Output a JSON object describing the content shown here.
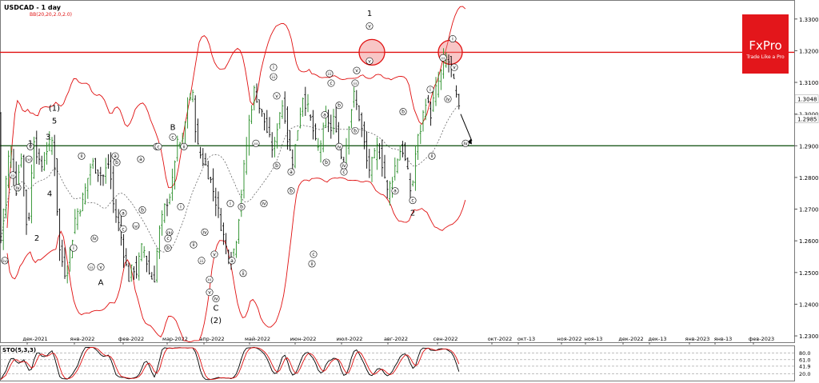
{
  "header": {
    "symbol": "USDCAD - 1 day",
    "indicator": "BB(20,20,2.0,2.0)"
  },
  "logo": {
    "name": "FxPro",
    "tagline": "Trade Like a Pro"
  },
  "oscillator": {
    "title": "STO(5,3,3)",
    "levels": [
      "80.0",
      "61.0",
      "41.9",
      "20.0"
    ]
  },
  "colors": {
    "up": "#228b22",
    "down": "#000000",
    "band": "#e01010",
    "resistance": "#e01010",
    "support": "#1e5a1e",
    "highlight": "#f08080",
    "logo_bg": "#e3161b"
  },
  "chart_data": {
    "type": "candlestick",
    "ylim": [
      1.228,
      1.336
    ],
    "ytick_labels": [
      "1.3300",
      "1.3200",
      "1.3100",
      "1.3000",
      "1.2900",
      "1.2800",
      "1.2700",
      "1.2600",
      "1.2500",
      "1.2400",
      "1.2300"
    ],
    "price_labels": [
      "1.3048",
      "1.2985"
    ],
    "xtick_labels": [
      "дек-2021",
      "янв-2022",
      "фев-2022",
      "мар-2022",
      "апр-2022",
      "май-2022",
      "июн-2022",
      "июл-2022",
      "авг-2022",
      "сен-2022",
      "окт-2022",
      "окт-13",
      "ноя-2022",
      "ноя-13",
      "дек-2022",
      "дек-13",
      "янв-2023",
      "янв-13",
      "фев-2023"
    ],
    "resistance": 1.3195,
    "support": 1.29,
    "last_close": 1.2985,
    "anchors": [
      [
        0,
        1.252
      ],
      [
        8,
        1.277
      ],
      [
        14,
        1.29
      ],
      [
        22,
        1.276
      ],
      [
        28,
        1.288
      ],
      [
        36,
        1.261
      ],
      [
        44,
        1.293
      ],
      [
        52,
        1.282
      ],
      [
        60,
        1.289
      ],
      [
        68,
        1.292
      ],
      [
        76,
        1.257
      ],
      [
        84,
        1.249
      ],
      [
        92,
        1.261
      ],
      [
        96,
        1.268
      ],
      [
        102,
        1.271
      ],
      [
        108,
        1.276
      ],
      [
        116,
        1.285
      ],
      [
        124,
        1.282
      ],
      [
        130,
        1.28
      ],
      [
        138,
        1.285
      ],
      [
        144,
        1.27
      ],
      [
        150,
        1.265
      ],
      [
        156,
        1.257
      ],
      [
        162,
        1.248
      ],
      [
        168,
        1.252
      ],
      [
        172,
        1.25
      ],
      [
        180,
        1.259
      ],
      [
        188,
        1.25
      ],
      [
        194,
        1.247
      ],
      [
        200,
        1.262
      ],
      [
        208,
        1.271
      ],
      [
        216,
        1.276
      ],
      [
        222,
        1.29
      ],
      [
        230,
        1.291
      ],
      [
        236,
        1.303
      ],
      [
        242,
        1.307
      ],
      [
        248,
        1.29
      ],
      [
        254,
        1.286
      ],
      [
        260,
        1.283
      ],
      [
        266,
        1.278
      ],
      [
        272,
        1.272
      ],
      [
        278,
        1.265
      ],
      [
        284,
        1.258
      ],
      [
        290,
        1.254
      ],
      [
        296,
        1.259
      ],
      [
        302,
        1.272
      ],
      [
        308,
        1.286
      ],
      [
        314,
        1.3
      ],
      [
        320,
        1.308
      ],
      [
        326,
        1.302
      ],
      [
        332,
        1.298
      ],
      [
        338,
        1.292
      ],
      [
        344,
        1.288
      ],
      [
        350,
        1.3
      ],
      [
        356,
        1.304
      ],
      [
        362,
        1.29
      ],
      [
        368,
        1.285
      ],
      [
        374,
        1.296
      ],
      [
        380,
        1.306
      ],
      [
        386,
        1.302
      ],
      [
        392,
        1.296
      ],
      [
        398,
        1.288
      ],
      [
        404,
        1.292
      ],
      [
        410,
        1.3
      ],
      [
        416,
        1.294
      ],
      [
        420,
        1.3
      ],
      [
        426,
        1.288
      ],
      [
        432,
        1.285
      ],
      [
        438,
        1.298
      ],
      [
        444,
        1.306
      ],
      [
        450,
        1.3
      ],
      [
        456,
        1.292
      ],
      [
        462,
        1.282
      ],
      [
        468,
        1.285
      ],
      [
        474,
        1.29
      ],
      [
        480,
        1.284
      ],
      [
        486,
        1.275
      ],
      [
        492,
        1.28
      ],
      [
        498,
        1.286
      ],
      [
        504,
        1.29
      ],
      [
        510,
        1.283
      ],
      [
        516,
        1.274
      ],
      [
        522,
        1.29
      ],
      [
        528,
        1.296
      ],
      [
        534,
        1.305
      ],
      [
        540,
        1.3
      ],
      [
        546,
        1.307
      ],
      [
        552,
        1.312
      ],
      [
        558,
        1.318
      ],
      [
        564,
        1.316
      ],
      [
        570,
        1.308
      ],
      [
        576,
        1.3
      ]
    ],
    "waves": [
      [
        "(iv)",
        6,
        1.253
      ],
      [
        "(v)",
        36,
        1.285
      ],
      [
        "iii",
        16,
        1.28
      ],
      [
        "iv",
        22,
        1.276
      ],
      [
        "v",
        38,
        1.289
      ],
      [
        "1",
        38,
        1.29
      ],
      [
        "3",
        60,
        1.292
      ],
      [
        "4",
        62,
        1.274
      ],
      [
        "5",
        68,
        1.297
      ],
      [
        "(1)",
        68,
        1.301
      ],
      [
        "2",
        46,
        1.26
      ],
      [
        "ii",
        102,
        1.286
      ],
      [
        "i",
        92,
        1.257
      ],
      [
        "iii",
        114,
        1.251
      ],
      [
        "iv",
        118,
        1.26
      ],
      [
        "v",
        126,
        1.251
      ],
      [
        "A",
        126,
        1.246
      ],
      [
        "a",
        144,
        1.286
      ],
      [
        "b",
        146,
        1.284
      ],
      [
        "a",
        154,
        1.268
      ],
      [
        "b",
        178,
        1.269
      ],
      [
        "c",
        154,
        1.263
      ],
      [
        "(a)",
        170,
        1.264
      ],
      [
        "a",
        176,
        1.285
      ],
      [
        "b",
        196,
        1.289
      ],
      [
        "c",
        198,
        1.289
      ],
      [
        "B",
        216,
        1.295
      ],
      [
        "c",
        216,
        1.292
      ],
      [
        "ii",
        230,
        1.289
      ],
      [
        "i",
        226,
        1.27
      ],
      [
        "b",
        210,
        1.257
      ],
      [
        "c",
        210,
        1.26
      ],
      [
        "(b)",
        212,
        1.262
      ],
      [
        "iv",
        256,
        1.262
      ],
      [
        "ii",
        242,
        1.258
      ],
      [
        "iii",
        252,
        1.253
      ],
      [
        "v",
        268,
        1.255
      ],
      [
        "iii",
        262,
        1.247
      ],
      [
        "iv",
        270,
        1.241
      ],
      [
        "v",
        262,
        1.243
      ],
      [
        "C",
        270,
        1.238
      ],
      [
        "(2)",
        270,
        1.234
      ],
      [
        "i",
        288,
        1.271
      ],
      [
        "ii",
        304,
        1.249
      ],
      [
        "iii",
        320,
        1.29
      ],
      [
        "a",
        290,
        1.253
      ],
      [
        "b",
        302,
        1.27
      ],
      [
        "iv",
        330,
        1.271
      ],
      [
        "iii",
        342,
        1.311
      ],
      [
        "i",
        342,
        1.314
      ],
      [
        "v",
        346,
        1.305
      ],
      [
        "b",
        346,
        1.283
      ],
      [
        "a",
        364,
        1.281
      ],
      [
        "b",
        364,
        1.275
      ],
      [
        "ii",
        390,
        1.252
      ],
      [
        "c",
        392,
        1.255
      ],
      [
        "a",
        406,
        1.299
      ],
      [
        "b",
        408,
        1.284
      ],
      [
        "iii",
        412,
        1.312
      ],
      [
        "c",
        414,
        1.309
      ],
      [
        "b",
        424,
        1.302
      ],
      [
        "iv",
        424,
        1.289
      ],
      [
        "c",
        430,
        1.281
      ],
      [
        "iv",
        430,
        1.283
      ],
      [
        "v",
        446,
        1.313
      ],
      [
        "iii",
        444,
        1.309
      ],
      [
        "b",
        444,
        1.294
      ],
      [
        "v",
        462,
        1.316
      ],
      [
        "1",
        462,
        1.331
      ],
      [
        "v",
        462,
        1.327
      ],
      [
        "a",
        494,
        1.275
      ],
      [
        "b",
        504,
        1.3
      ],
      [
        "c",
        516,
        1.272
      ],
      [
        "2",
        516,
        1.268
      ],
      [
        "i",
        538,
        1.307
      ],
      [
        "ii",
        540,
        1.286
      ],
      [
        "iii",
        554,
        1.317
      ],
      [
        "v",
        568,
        1.314
      ],
      [
        "iv",
        560,
        1.304
      ],
      [
        "i",
        566,
        1.323
      ],
      [
        "iv",
        582,
        1.29
      ]
    ]
  }
}
